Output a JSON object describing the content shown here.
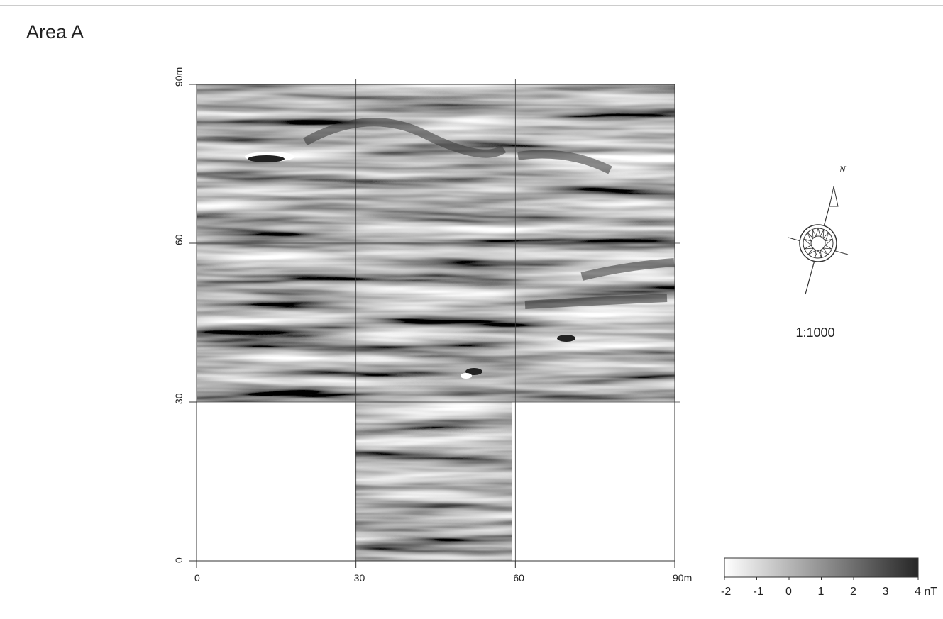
{
  "title": "Area A",
  "map": {
    "x_axis": {
      "lim": [
        0,
        90
      ],
      "ticks": [
        0,
        30,
        60,
        {
          "value": 90,
          "label": "90m"
        }
      ]
    },
    "y_axis": {
      "lim": [
        0,
        90
      ],
      "ticks": [
        0,
        30,
        60,
        {
          "value": 90,
          "label": "90m"
        }
      ]
    }
  },
  "north_label": "N",
  "scale": "1:1000",
  "colorbar": {
    "lim": [
      -2,
      4
    ],
    "ticks": [
      -2,
      -1,
      0,
      1,
      2,
      3,
      {
        "value": 4,
        "label": "4 nT"
      }
    ],
    "colors": [
      "#ffffff",
      "#262626"
    ]
  }
}
